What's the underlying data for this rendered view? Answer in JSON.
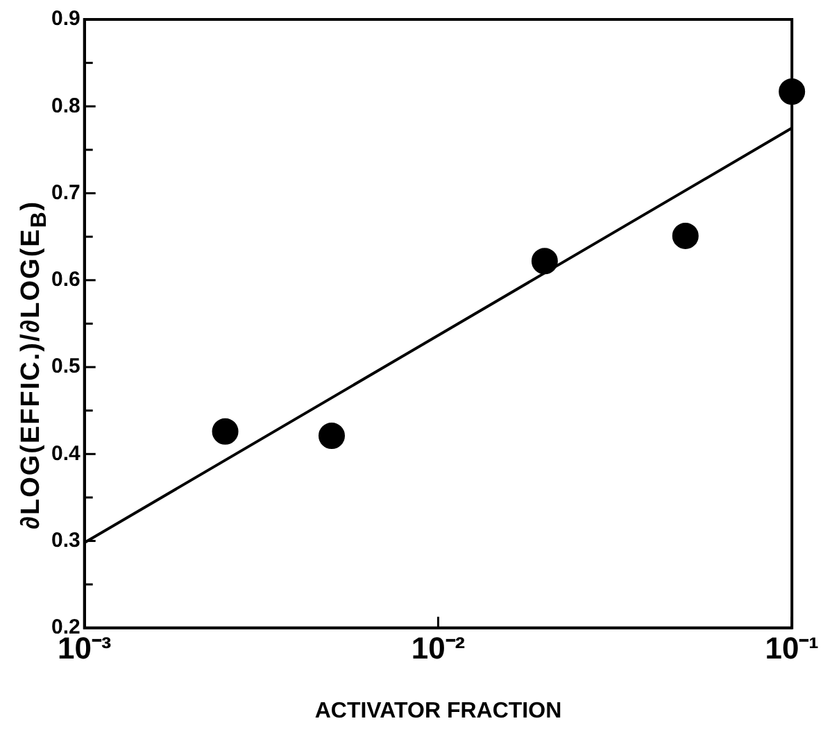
{
  "chart_data": {
    "type": "scatter",
    "xlabel": "ACTIVATOR FRACTION",
    "ylabel": "∂LOG(EFFIC.)/∂LOG(E$_{B}$)",
    "log": "x",
    "xlim": [
      0.001,
      0.1
    ],
    "xticks": [
      {
        "value": 0.001,
        "label": "10⁻³"
      },
      {
        "value": 0.01,
        "label": "10⁻²"
      },
      {
        "value": 0.1,
        "label": "10⁻¹"
      }
    ],
    "ylim": [
      0.2,
      0.9
    ],
    "yticks": [
      0.2,
      {
        "value": 0.25,
        "label": null
      },
      0.3,
      {
        "value": 0.35,
        "label": null
      },
      0.4,
      {
        "value": 0.45,
        "label": null
      },
      0.5,
      {
        "value": 0.55,
        "label": null
      },
      0.6,
      {
        "value": 0.65,
        "label": null
      },
      0.7,
      {
        "value": 0.75,
        "label": null
      },
      0.8,
      {
        "value": 0.85,
        "label": null
      },
      0.9
    ],
    "grid": false,
    "legend": false,
    "marker": "circle",
    "series": [
      {
        "type": "scatter",
        "color": "#000000",
        "x": [
          0.0025,
          0.005,
          0.02,
          0.05,
          0.1
        ],
        "values": [
          0.426,
          0.421,
          0.622,
          0.651,
          0.817
        ]
      },
      {
        "type": "line",
        "color": "#000000",
        "marker": "none",
        "line_style": "solid",
        "x": [
          0.001,
          0.1
        ],
        "values": [
          0.298,
          0.775
        ]
      }
    ]
  }
}
